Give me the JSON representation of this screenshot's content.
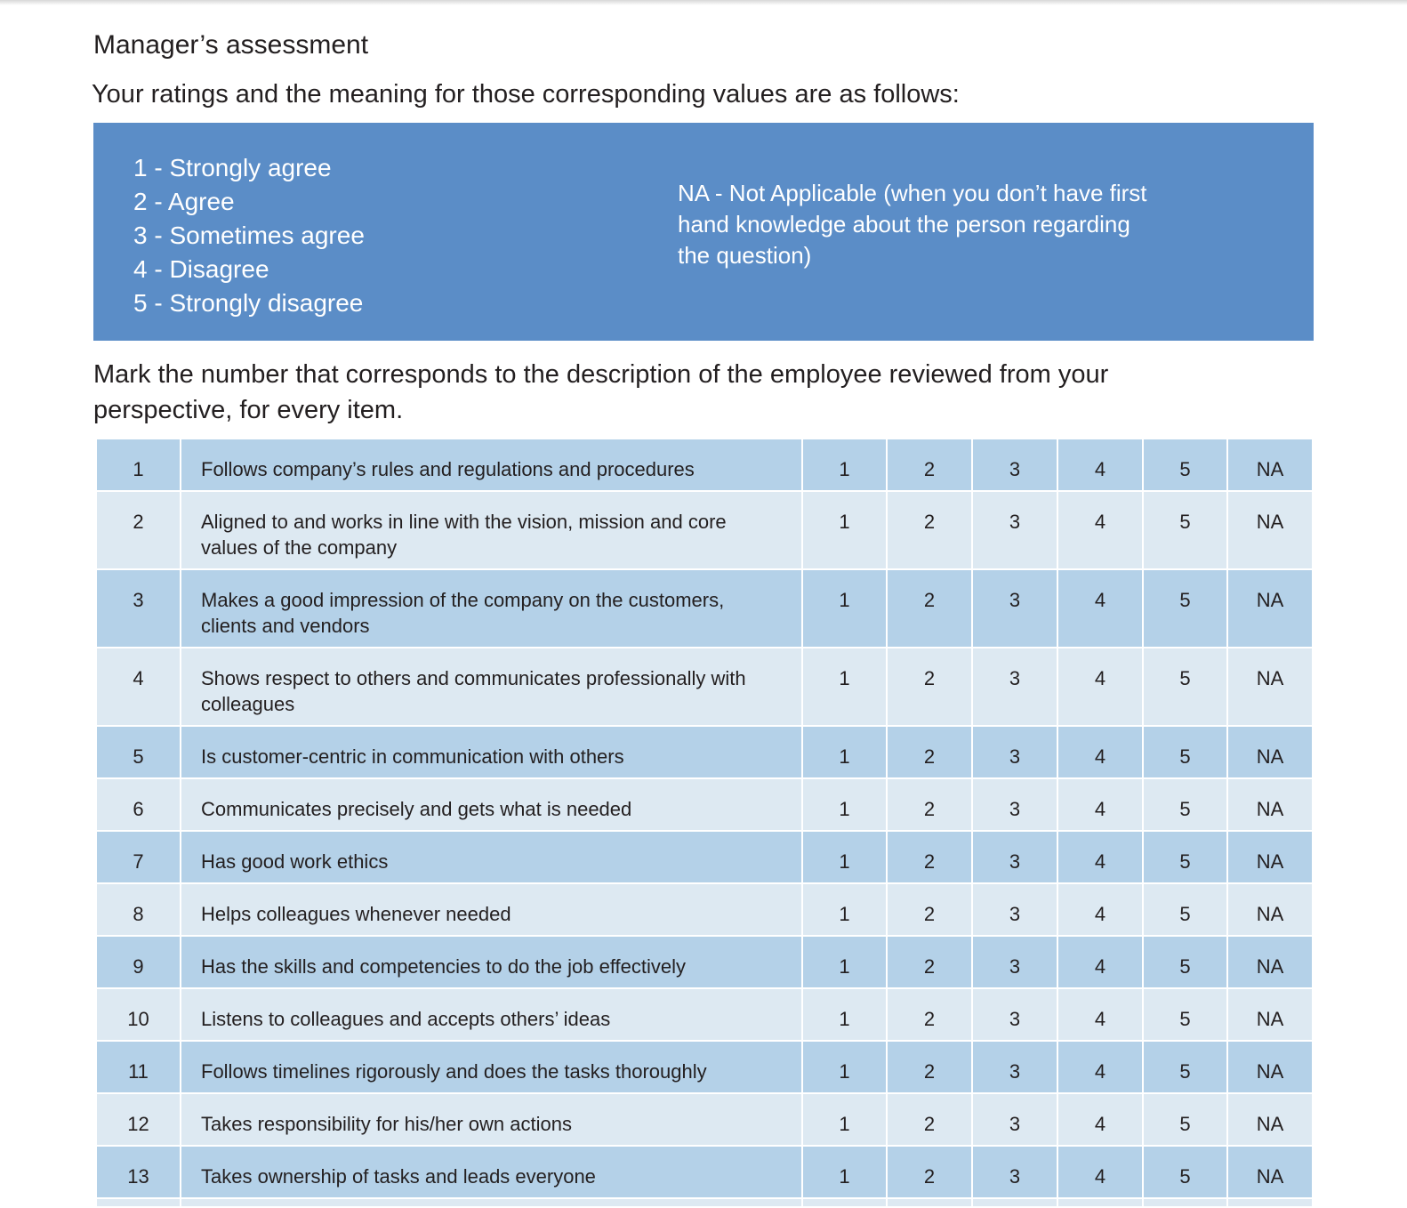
{
  "header": {
    "title": "Manager’s assessment",
    "intro": "Your ratings and the meaning for those corresponding values are as follows:"
  },
  "legend": {
    "scale": [
      "1 - Strongly agree",
      "2 - Agree",
      "3 - Sometimes agree",
      "4 - Disagree",
      "5 - Strongly disagree"
    ],
    "na_note": "NA - Not Applicable (when you don’t have first hand knowledge about the person regarding the question)"
  },
  "instruction": "Mark the number that corresponds to the description of the employee reviewed from your perspective, for every item.",
  "table": {
    "options": [
      "1",
      "2",
      "3",
      "4",
      "5",
      "NA"
    ],
    "rows": [
      [
        "1",
        "Follows company’s rules and regulations and procedures"
      ],
      [
        "2",
        "Aligned to and works in line with the vision, mission and core values of the company"
      ],
      [
        "3",
        "Makes a good impression of the company on the customers, clients and vendors"
      ],
      [
        "4",
        "Shows respect to others and communicates professionally with colleagues"
      ],
      [
        "5",
        "Is customer-centric in communication with others"
      ],
      [
        "6",
        "Communicates precisely and gets what is needed"
      ],
      [
        "7",
        "Has good work ethics"
      ],
      [
        "8",
        "Helps colleagues whenever needed"
      ],
      [
        "9",
        "Has the skills and competencies to do the job effectively"
      ],
      [
        "10",
        "Listens to colleagues and accepts others’ ideas"
      ],
      [
        "11",
        "Follows timelines rigorously and does the tasks thoroughly"
      ],
      [
        "12",
        "Takes responsibility for his/her own actions"
      ],
      [
        "13",
        "Takes ownership of tasks and leads everyone"
      ]
    ]
  }
}
